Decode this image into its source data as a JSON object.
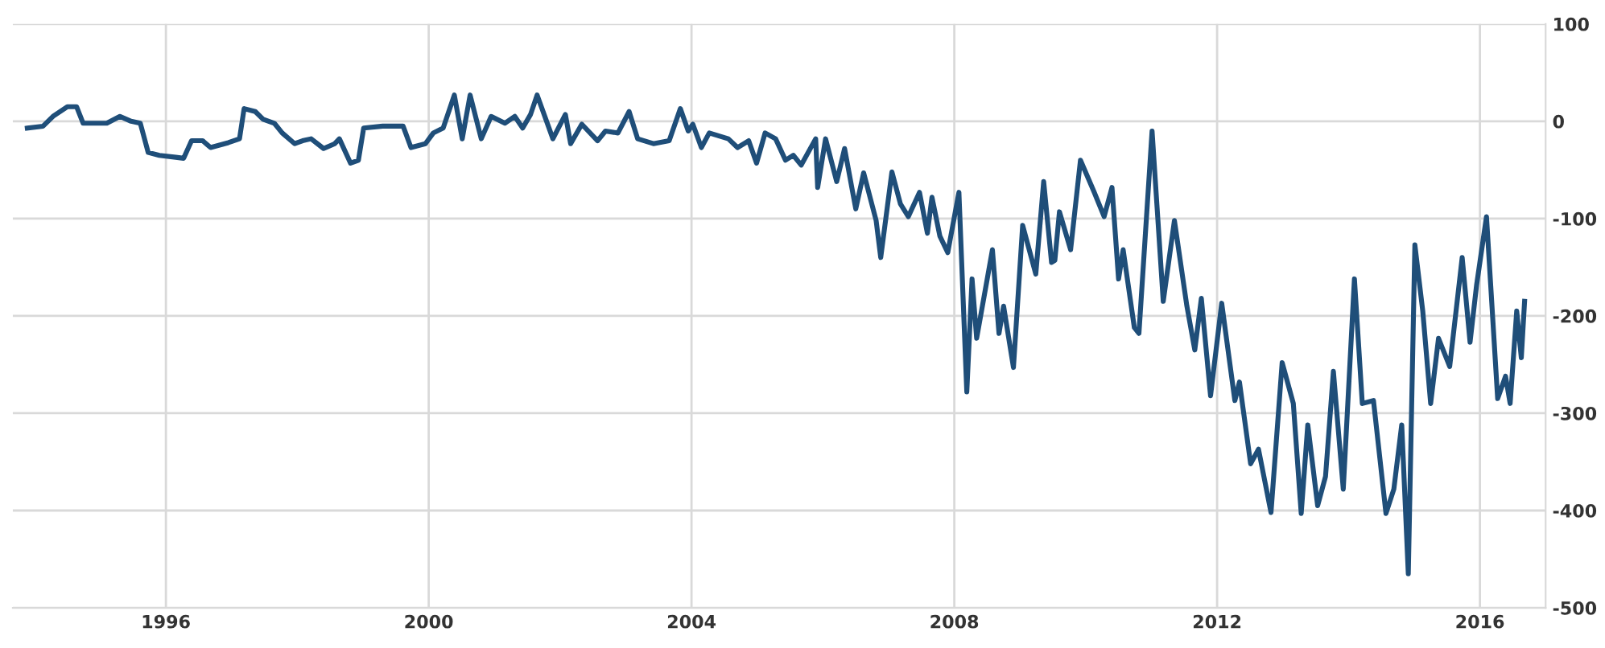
{
  "chart_data": {
    "type": "line",
    "x": [
      1993.89,
      1994.13,
      1994.28,
      1994.5,
      1994.64,
      1994.74,
      1995.1,
      1995.3,
      1995.47,
      1995.61,
      1995.73,
      1995.9,
      1996.15,
      1996.27,
      1996.39,
      1996.56,
      1996.68,
      1996.95,
      1997.12,
      1997.19,
      1997.36,
      1997.48,
      1997.65,
      1997.77,
      1997.96,
      1998.08,
      1998.21,
      1998.4,
      1998.57,
      1998.64,
      1998.81,
      1998.93,
      1999.01,
      1999.3,
      1999.61,
      1999.73,
      1999.95,
      2000.07,
      2000.22,
      2000.39,
      2000.51,
      2000.63,
      2000.8,
      2000.95,
      2001.16,
      2001.31,
      2001.43,
      2001.55,
      2001.65,
      2001.89,
      2002.08,
      2002.16,
      2002.33,
      2002.57,
      2002.69,
      2002.88,
      2003.05,
      2003.18,
      2003.42,
      2003.66,
      2003.83,
      2003.95,
      2004.02,
      2004.15,
      2004.27,
      2004.56,
      2004.7,
      2004.87,
      2004.99,
      2005.12,
      2005.28,
      2005.43,
      2005.55,
      2005.67,
      2005.89,
      2005.92,
      2006.04,
      2006.21,
      2006.33,
      2006.5,
      2006.62,
      2006.81,
      2006.88,
      2007.05,
      2007.18,
      2007.3,
      2007.47,
      2007.59,
      2007.66,
      2007.78,
      2007.9,
      2008.07,
      2008.19,
      2008.27,
      2008.34,
      2008.58,
      2008.68,
      2008.75,
      2008.9,
      2009.04,
      2009.24,
      2009.36,
      2009.48,
      2009.53,
      2009.6,
      2009.77,
      2009.92,
      2010.13,
      2010.28,
      2010.4,
      2010.5,
      2010.57,
      2010.74,
      2010.81,
      2011.01,
      2011.18,
      2011.35,
      2011.54,
      2011.66,
      2011.76,
      2011.9,
      2012.07,
      2012.27,
      2012.34,
      2012.51,
      2012.63,
      2012.82,
      2012.99,
      2013.16,
      2013.28,
      2013.38,
      2013.53,
      2013.65,
      2013.77,
      2013.92,
      2014.09,
      2014.21,
      2014.38,
      2014.57,
      2014.69,
      2014.81,
      2014.91,
      2015.01,
      2015.13,
      2015.25,
      2015.37,
      2015.54,
      2015.73,
      2015.85,
      2015.95,
      2016.1,
      2016.27,
      2016.39,
      2016.46,
      2016.56,
      2016.63,
      2016.68
    ],
    "series": [
      {
        "color": "#1f4e79",
        "values": [
          -7,
          -5,
          5,
          15,
          15,
          -2,
          -2,
          5,
          0,
          -2,
          -32,
          -35,
          -37,
          -38,
          -20,
          -20,
          -27,
          -22,
          -18,
          13,
          10,
          2,
          -2,
          -12,
          -23,
          -20,
          -18,
          -28,
          -23,
          -18,
          -43,
          -40,
          -7,
          -5,
          -5,
          -27,
          -23,
          -12,
          -7,
          27,
          -18,
          27,
          -18,
          5,
          -2,
          5,
          -7,
          7,
          27,
          -18,
          7,
          -23,
          -3,
          -20,
          -10,
          -12,
          10,
          -18,
          -23,
          -20,
          13,
          -10,
          -3,
          -27,
          -12,
          -18,
          -27,
          -20,
          -43,
          -12,
          -18,
          -40,
          -35,
          -45,
          -18,
          -68,
          -18,
          -62,
          -28,
          -90,
          -53,
          -102,
          -140,
          -52,
          -85,
          -98,
          -73,
          -115,
          -78,
          -118,
          -135,
          -73,
          -278,
          -162,
          -223,
          -132,
          -218,
          -190,
          -253,
          -107,
          -157,
          -62,
          -145,
          -143,
          -93,
          -132,
          -40,
          -73,
          -98,
          -68,
          -162,
          -132,
          -212,
          -218,
          -10,
          -185,
          -102,
          -190,
          -235,
          -182,
          -282,
          -187,
          -287,
          -268,
          -352,
          -337,
          -402,
          -248,
          -290,
          -403,
          -312,
          -395,
          -365,
          -257,
          -378,
          -162,
          -290,
          -287,
          -403,
          -378,
          -312,
          -465,
          -127,
          -195,
          -290,
          -223,
          -252,
          -140,
          -227,
          -168,
          -98,
          -285,
          -262,
          -290,
          -195,
          -243,
          -185
        ]
      }
    ],
    "xlim": [
      1993.67,
      2017.0
    ],
    "ylim": [
      -500,
      100
    ],
    "xticks": [
      1996,
      2000,
      2004,
      2008,
      2012,
      2016
    ],
    "yticks": [
      -500,
      -400,
      -300,
      -200,
      -100,
      0,
      100
    ],
    "grid": true,
    "marker": "none",
    "line_style": "solid"
  }
}
